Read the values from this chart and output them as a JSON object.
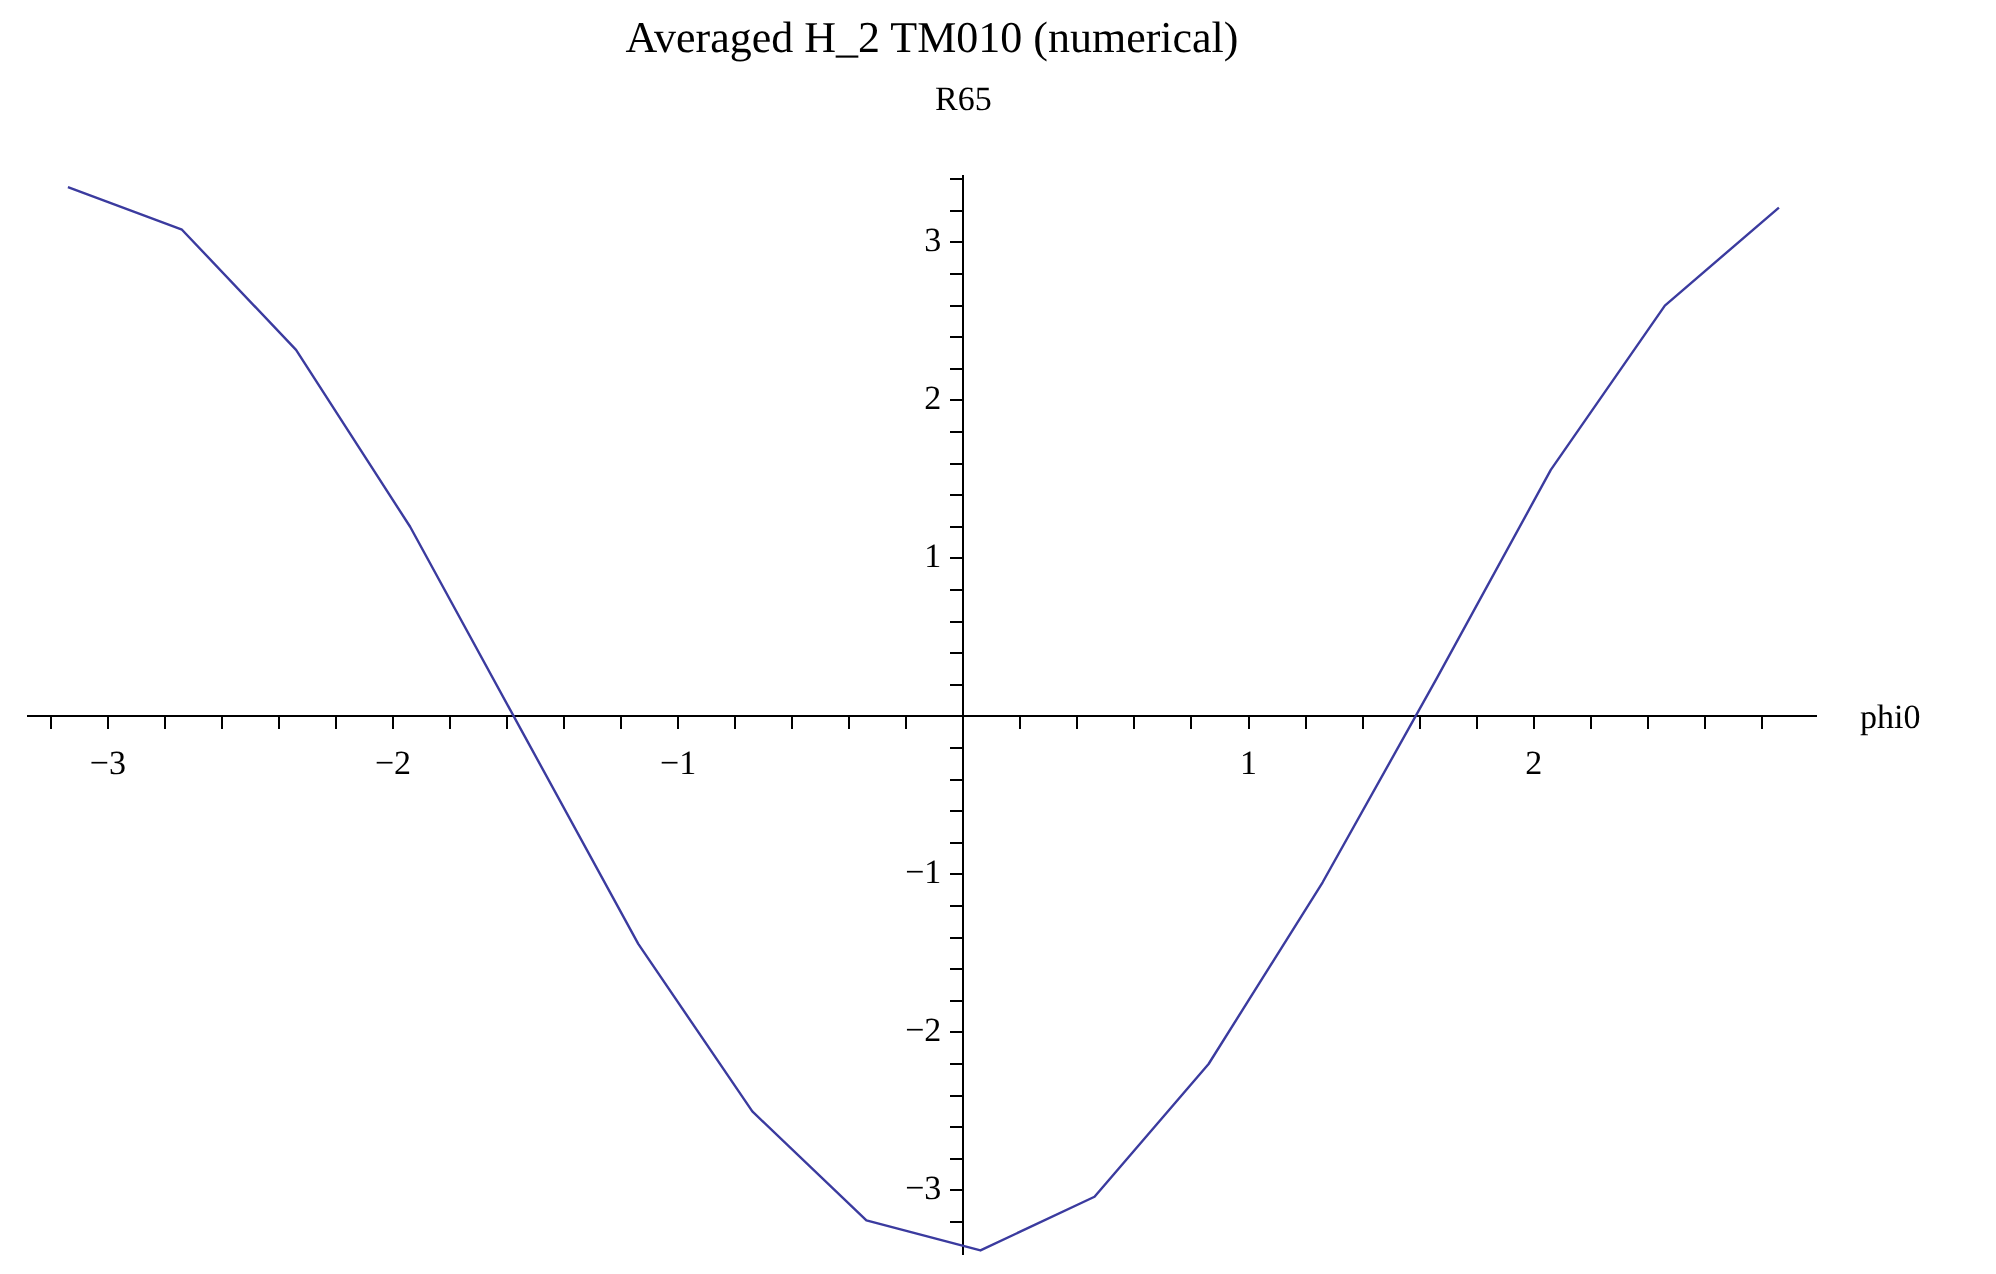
{
  "chart_data": {
    "type": "line",
    "title": "Averaged H_2 TM010 (numerical)",
    "xlabel": "phi0",
    "ylabel": "R65",
    "marker": "none",
    "line_style": "solid",
    "x": [
      -3.14,
      -2.74,
      -2.34,
      -1.94,
      -1.54,
      -1.14,
      -0.74,
      -0.34,
      0.06,
      0.46,
      0.86,
      1.26,
      1.66,
      2.06,
      2.46,
      2.86
    ],
    "series": [
      {
        "color": "#3b3b9f",
        "values": [
          3.35,
          3.08,
          2.32,
          1.2,
          -0.12,
          -1.44,
          -2.5,
          -3.19,
          -3.38,
          -3.04,
          -2.2,
          -1.05,
          0.24,
          1.56,
          2.6,
          3.22
        ]
      }
    ],
    "xlim": [
      -3.28,
      2.99
    ],
    "ylim": [
      -3.4,
      3.42
    ],
    "xticks": [
      {
        "value": -3.2,
        "label": null
      },
      {
        "value": -3,
        "label": "−3"
      },
      {
        "value": -2.8,
        "label": null
      },
      {
        "value": -2.6,
        "label": null
      },
      {
        "value": -2.4,
        "label": null
      },
      {
        "value": -2.2,
        "label": null
      },
      {
        "value": -2,
        "label": "−2"
      },
      {
        "value": -1.8,
        "label": null
      },
      {
        "value": -1.6,
        "label": null
      },
      {
        "value": -1.4,
        "label": null
      },
      {
        "value": -1.2,
        "label": null
      },
      {
        "value": -1,
        "label": "−1"
      },
      {
        "value": -0.8,
        "label": null
      },
      {
        "value": -0.6,
        "label": null
      },
      {
        "value": -0.4,
        "label": null
      },
      {
        "value": -0.2,
        "label": null
      },
      {
        "value": 0.2,
        "label": null
      },
      {
        "value": 0.4,
        "label": null
      },
      {
        "value": 0.6,
        "label": null
      },
      {
        "value": 0.8,
        "label": null
      },
      1,
      {
        "value": 1.2,
        "label": null
      },
      {
        "value": 1.4,
        "label": null
      },
      {
        "value": 1.6,
        "label": null
      },
      {
        "value": 1.8,
        "label": null
      },
      2,
      {
        "value": 2.2,
        "label": null
      },
      {
        "value": 2.4,
        "label": null
      },
      {
        "value": 2.6,
        "label": null
      },
      {
        "value": 2.8,
        "label": null
      }
    ],
    "yticks": [
      {
        "value": -3.2,
        "label": null
      },
      {
        "value": -3,
        "label": "−3"
      },
      {
        "value": -2.8,
        "label": null
      },
      {
        "value": -2.6,
        "label": null
      },
      {
        "value": -2.4,
        "label": null
      },
      {
        "value": -2.2,
        "label": null
      },
      {
        "value": -2,
        "label": "−2"
      },
      {
        "value": -1.8,
        "label": null
      },
      {
        "value": -1.6,
        "label": null
      },
      {
        "value": -1.4,
        "label": null
      },
      {
        "value": -1.2,
        "label": null
      },
      {
        "value": -1,
        "label": "−1"
      },
      {
        "value": -0.8,
        "label": null
      },
      {
        "value": -0.6,
        "label": null
      },
      {
        "value": -0.4,
        "label": null
      },
      {
        "value": -0.2,
        "label": null
      },
      {
        "value": 0.2,
        "label": null
      },
      {
        "value": 0.4,
        "label": null
      },
      {
        "value": 0.6,
        "label": null
      },
      {
        "value": 0.8,
        "label": null
      },
      1,
      {
        "value": 1.2,
        "label": null
      },
      {
        "value": 1.4,
        "label": null
      },
      {
        "value": 1.6,
        "label": null
      },
      {
        "value": 1.8,
        "label": null
      },
      2,
      {
        "value": 2.2,
        "label": null
      },
      {
        "value": 2.4,
        "label": null
      },
      {
        "value": 2.6,
        "label": null
      },
      {
        "value": 2.8,
        "label": null
      },
      3,
      {
        "value": 3.2,
        "label": null
      },
      {
        "value": 3.4,
        "label": null
      }
    ]
  }
}
